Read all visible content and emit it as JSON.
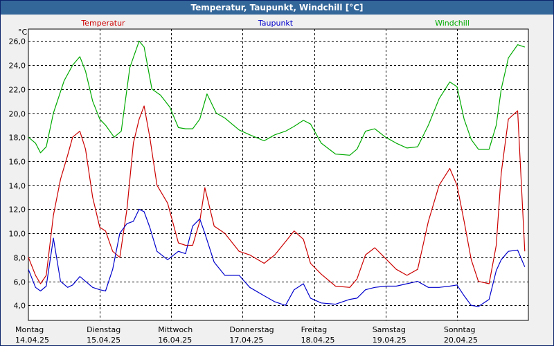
{
  "window": {
    "title": "Temperatur, Taupunkt, Windchill [°C]"
  },
  "colors": {
    "temperatur": "#cc0000",
    "taupunkt": "#0000cc",
    "windchill": "#00aa00",
    "grid": "#000000",
    "titlebar": "#336699"
  },
  "chart_data": {
    "type": "line",
    "title": "Temperatur, Taupunkt, Windchill [°C]",
    "ylabel": "°C",
    "xlabel": "",
    "ylim": [
      2.75,
      27.0
    ],
    "xlim": [
      0,
      7
    ],
    "grid": true,
    "legend": "top",
    "yticks": [
      4,
      6,
      8,
      10,
      12,
      14,
      16,
      18,
      20,
      22,
      24,
      26
    ],
    "ytick_labels": [
      "4,0",
      "6,0",
      "8,0",
      "10,0",
      "12,0",
      "14,0",
      "16,0",
      "18,0",
      "20,0",
      "22,0",
      "24,0",
      "26,0"
    ],
    "days": [
      {
        "name": "Montag",
        "date": "14.04.25"
      },
      {
        "name": "Dienstag",
        "date": "15.04.25"
      },
      {
        "name": "Mittwoch",
        "date": "16.04.25"
      },
      {
        "name": "Donnerstag",
        "date": "17.04.25"
      },
      {
        "name": "Freitag",
        "date": "18.04.25"
      },
      {
        "name": "Samstag",
        "date": "19.04.25"
      },
      {
        "name": "Sonntag",
        "date": "20.04.25"
      }
    ],
    "series": [
      {
        "name": "Windchill",
        "key": "windchill",
        "x": [
          0,
          0.1,
          0.17,
          0.25,
          0.35,
          0.5,
          0.62,
          0.72,
          0.8,
          0.9,
          1.0,
          1.08,
          1.2,
          1.3,
          1.42,
          1.55,
          1.62,
          1.73,
          1.85,
          1.98,
          2.1,
          2.2,
          2.3,
          2.4,
          2.5,
          2.63,
          2.75,
          2.95,
          3.1,
          3.3,
          3.45,
          3.6,
          3.72,
          3.85,
          3.95,
          4.1,
          4.3,
          4.5,
          4.6,
          4.72,
          4.85,
          5.0,
          5.15,
          5.3,
          5.45,
          5.6,
          5.75,
          5.9,
          6.0,
          6.1,
          6.2,
          6.3,
          6.45,
          6.55,
          6.62,
          6.72,
          6.85,
          6.95
        ],
        "y": [
          18.0,
          17.5,
          16.7,
          17.2,
          20.0,
          22.7,
          24.0,
          24.7,
          23.5,
          21.0,
          19.5,
          19.0,
          18.0,
          18.5,
          23.8,
          26.0,
          25.5,
          22.0,
          21.5,
          20.5,
          18.8,
          18.7,
          18.7,
          19.5,
          21.6,
          20.0,
          19.6,
          18.6,
          18.2,
          17.7,
          18.2,
          18.5,
          18.9,
          19.4,
          19.1,
          17.5,
          16.6,
          16.5,
          17.0,
          18.5,
          18.7,
          18.0,
          17.5,
          17.1,
          17.2,
          19.0,
          21.2,
          22.6,
          22.2,
          19.5,
          17.8,
          17.0,
          17.0,
          19.0,
          22.0,
          24.6,
          25.7,
          25.5
        ]
      },
      {
        "name": "Temperatur",
        "key": "temperatur",
        "x": [
          0,
          0.1,
          0.17,
          0.25,
          0.35,
          0.45,
          0.55,
          0.62,
          0.72,
          0.8,
          0.9,
          1.0,
          1.08,
          1.18,
          1.28,
          1.38,
          1.47,
          1.55,
          1.62,
          1.7,
          1.8,
          1.95,
          2.1,
          2.2,
          2.3,
          2.4,
          2.47,
          2.6,
          2.75,
          2.95,
          3.1,
          3.3,
          3.45,
          3.6,
          3.72,
          3.85,
          3.95,
          4.1,
          4.3,
          4.5,
          4.6,
          4.72,
          4.85,
          5.0,
          5.15,
          5.3,
          5.45,
          5.6,
          5.75,
          5.9,
          6.0,
          6.1,
          6.2,
          6.3,
          6.45,
          6.55,
          6.62,
          6.72,
          6.85,
          6.95
        ],
        "y": [
          8.0,
          6.5,
          5.8,
          6.5,
          11.5,
          14.5,
          16.5,
          18.0,
          18.5,
          17.0,
          13.0,
          10.5,
          10.2,
          8.5,
          8.0,
          12.0,
          17.5,
          19.5,
          20.6,
          18.0,
          14.0,
          12.5,
          9.2,
          9.0,
          9.0,
          11.0,
          13.8,
          10.6,
          10.0,
          8.5,
          8.2,
          7.5,
          8.2,
          9.3,
          10.2,
          9.5,
          7.5,
          6.6,
          5.6,
          5.5,
          6.2,
          8.2,
          8.8,
          7.9,
          7.0,
          6.5,
          7.0,
          11.0,
          14.0,
          15.4,
          14.0,
          11.0,
          7.8,
          6.0,
          5.8,
          9.0,
          15.0,
          19.5,
          20.2,
          8.5
        ]
      },
      {
        "name": "Taupunkt",
        "key": "taupunkt",
        "x": [
          0,
          0.1,
          0.17,
          0.25,
          0.35,
          0.45,
          0.55,
          0.62,
          0.72,
          0.8,
          0.9,
          1.0,
          1.08,
          1.18,
          1.28,
          1.38,
          1.47,
          1.55,
          1.62,
          1.7,
          1.8,
          1.95,
          2.1,
          2.2,
          2.3,
          2.4,
          2.47,
          2.6,
          2.75,
          2.95,
          3.1,
          3.3,
          3.45,
          3.6,
          3.72,
          3.85,
          3.95,
          4.1,
          4.3,
          4.5,
          4.6,
          4.72,
          4.85,
          5.0,
          5.15,
          5.3,
          5.45,
          5.6,
          5.75,
          5.9,
          6.0,
          6.1,
          6.2,
          6.3,
          6.45,
          6.55,
          6.62,
          6.72,
          6.85,
          6.95
        ],
        "y": [
          7.0,
          5.5,
          5.2,
          5.6,
          9.6,
          6.0,
          5.5,
          5.7,
          6.4,
          6.0,
          5.5,
          5.3,
          5.2,
          7.0,
          10.0,
          10.8,
          11.0,
          12.0,
          11.8,
          10.5,
          8.5,
          7.8,
          8.5,
          8.3,
          10.6,
          11.2,
          10.0,
          7.6,
          6.5,
          6.5,
          5.5,
          4.8,
          4.3,
          4.0,
          5.3,
          5.8,
          4.6,
          4.2,
          4.1,
          4.5,
          4.6,
          5.3,
          5.5,
          5.6,
          5.6,
          5.8,
          6.0,
          5.5,
          5.5,
          5.6,
          5.7,
          4.8,
          4.0,
          3.9,
          4.5,
          6.9,
          7.8,
          8.5,
          8.6,
          7.2
        ]
      }
    ]
  }
}
